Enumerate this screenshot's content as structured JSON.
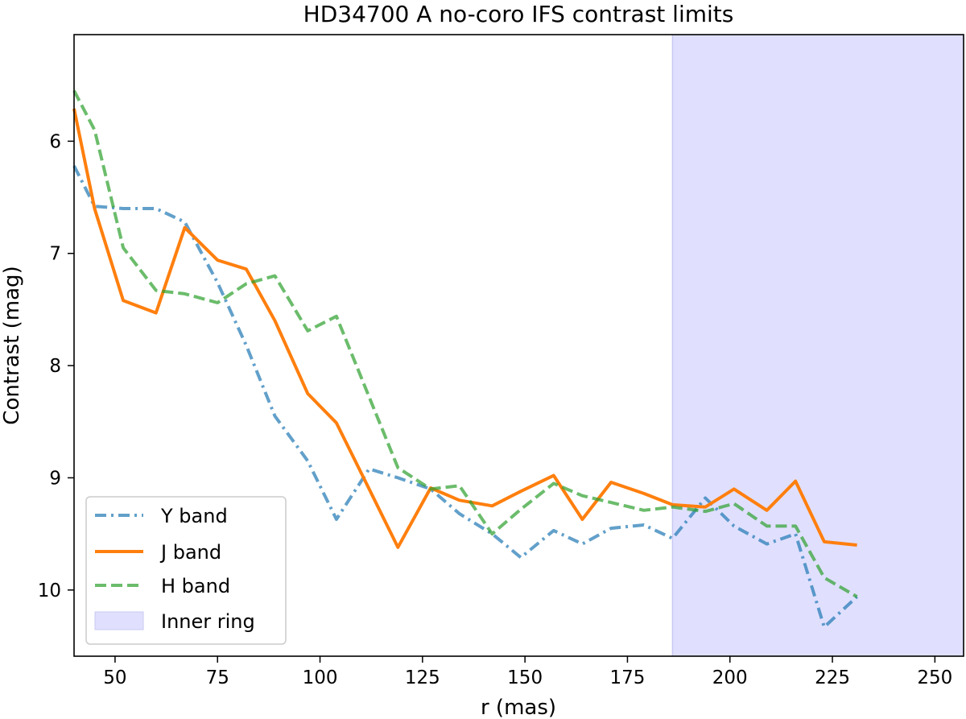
{
  "chart_data": {
    "type": "line",
    "title": "HD34700 A no-coro IFS contrast limits",
    "xlabel": "r (mas)",
    "ylabel": "Contrast (mag)",
    "xlim": [
      40,
      257
    ],
    "ylim": [
      10.59,
      5.05
    ],
    "y_inverted": true,
    "xticks": [
      50,
      75,
      100,
      125,
      150,
      175,
      200,
      225,
      250
    ],
    "yticks": [
      6,
      7,
      8,
      9,
      10
    ],
    "grid": false,
    "legend_position": "lower-left",
    "x": [
      40,
      45,
      52,
      60,
      67,
      75,
      82,
      89,
      97,
      104,
      112,
      119,
      127,
      134,
      142,
      149,
      157,
      164,
      171,
      179,
      186,
      194,
      201,
      209,
      216,
      223,
      231
    ],
    "series": [
      {
        "name": "Y band",
        "color": "#1f77b4",
        "style": "dashdot",
        "values": [
          6.22,
          6.58,
          6.6,
          6.6,
          6.72,
          7.26,
          7.82,
          8.45,
          8.85,
          9.37,
          8.92,
          9.0,
          9.1,
          9.32,
          9.5,
          9.71,
          9.47,
          9.59,
          9.45,
          9.42,
          9.54,
          9.18,
          9.43,
          9.59,
          9.5,
          10.33,
          10.06
        ]
      },
      {
        "name": "J band",
        "color": "#ff7f0e",
        "style": "solid",
        "values": [
          5.71,
          6.6,
          7.42,
          7.53,
          6.77,
          7.06,
          7.14,
          7.6,
          8.25,
          8.51,
          9.1,
          9.62,
          9.09,
          9.2,
          9.25,
          9.12,
          8.98,
          9.37,
          9.04,
          9.14,
          9.24,
          9.26,
          9.1,
          9.29,
          9.03,
          9.57,
          9.6
        ]
      },
      {
        "name": "H band",
        "color": "#2ca02c",
        "style": "dashed",
        "values": [
          5.55,
          5.9,
          6.95,
          7.33,
          7.36,
          7.44,
          7.27,
          7.2,
          7.69,
          7.56,
          8.28,
          8.91,
          9.1,
          9.07,
          9.5,
          9.28,
          9.05,
          9.16,
          9.22,
          9.29,
          9.26,
          9.3,
          9.23,
          9.43,
          9.43,
          9.89,
          10.06
        ]
      }
    ],
    "shaded_regions": [
      {
        "name": "Inner ring",
        "x_from": 186,
        "x_to": 257,
        "color": "#e0e0fe",
        "edge_color": "#c8c8f2"
      }
    ]
  }
}
